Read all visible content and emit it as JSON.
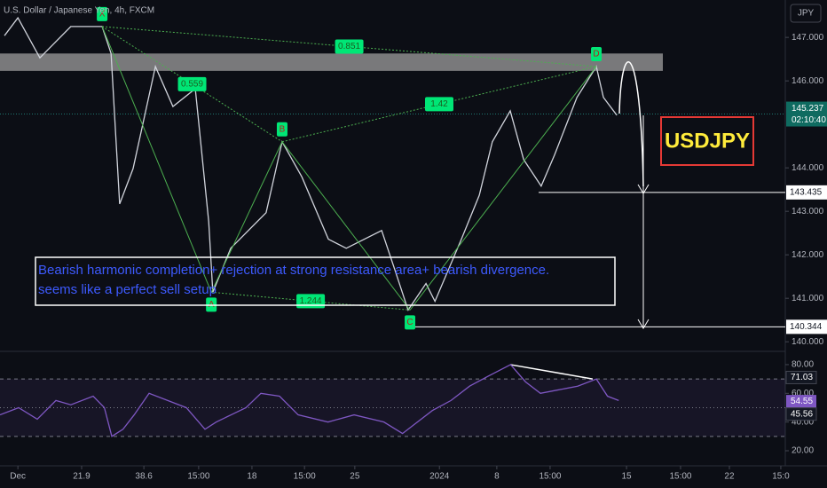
{
  "chart_data": [
    {
      "type": "line",
      "title": "U.S. Dollar / Japanese Yen, 4h, FXCM",
      "currency": "JPY",
      "x": [
        1.2,
        4.8,
        10.7,
        19.0,
        27.4,
        29.8,
        32.1,
        35.7,
        41.7,
        46.4,
        52.4,
        56.0,
        57.1,
        61.9,
        71.4,
        75.7,
        81.0,
        88.1,
        92.9,
        102.4,
        106.0,
        109.5,
        114.3,
        116.7,
        123.8,
        128.6,
        132.1,
        136.9,
        140.5,
        145.2,
        148.8,
        154.8,
        160.0,
        161.9,
        165.5
      ],
      "series": [
        {
          "color": "#d1d4dc",
          "values": [
            147.04,
            147.45,
            146.53,
            147.25,
            147.25,
            146.63,
            143.17,
            143.98,
            146.33,
            145.41,
            145.82,
            142.76,
            141.14,
            142.15,
            142.97,
            144.6,
            143.79,
            142.36,
            142.15,
            142.56,
            141.64,
            140.73,
            141.34,
            140.93,
            142.36,
            143.37,
            144.6,
            145.31,
            144.19,
            143.58,
            144.3,
            145.62,
            146.33,
            145.62,
            145.21
          ]
        }
      ],
      "xlim": [
        0,
        210.7
      ],
      "xticks": [
        {
          "value": 4.8,
          "label": "Dec"
        },
        21.9,
        38.6,
        {
          "value": 53.3,
          "label": "15:00"
        },
        {
          "value": 67.6,
          "label": "18"
        },
        {
          "value": 81.7,
          "label": "15:00"
        },
        {
          "value": 95.2,
          "label": "25"
        },
        {
          "value": 117.9,
          "label": "2024"
        },
        {
          "value": 133.3,
          "label": "8"
        },
        {
          "value": 147.6,
          "label": "15:00"
        },
        {
          "value": 168.1,
          "label": "15"
        },
        {
          "value": 182.6,
          "label": "15:00"
        },
        {
          "value": 195.7,
          "label": "22"
        },
        {
          "value": 209.5,
          "label": "15:0"
        }
      ],
      "ylim": [
        139.8,
        147.86
      ],
      "yticks": [
        {
          "value": 140,
          "label": "140.000"
        },
        {
          "value": 141,
          "label": "141.000"
        },
        {
          "value": 142,
          "label": "142.000"
        },
        {
          "value": 143,
          "label": "143.000"
        },
        {
          "value": 144,
          "label": "144.000"
        },
        {
          "value": 146,
          "label": "146.000"
        },
        {
          "value": 147,
          "label": "147.000"
        }
      ],
      "current_price": 145.237,
      "countdown": "02:10:40",
      "levels": [
        143.435,
        140.344
      ],
      "resistance_zone": [
        146.23,
        146.63
      ],
      "pattern": {
        "color": "#4caf50",
        "points": [
          {
            "label": "X",
            "x": 27.4,
            "y": 147.25
          },
          {
            "label": "A",
            "x": 56.7,
            "y": 141.14
          },
          {
            "label": "B",
            "x": 75.7,
            "y": 144.6
          },
          {
            "label": "C",
            "x": 110.0,
            "y": 140.73
          },
          {
            "label": "D",
            "x": 160.0,
            "y": 146.33
          }
        ],
        "ratios": [
          0.851,
          0.559,
          1.42,
          1.244
        ]
      },
      "annotation": [
        "Bearish harmonic completion+ rejection at strong resistance area+ bearish divergence.",
        "seems like a perfect sell setup"
      ],
      "symbol": "USDJPY"
    },
    {
      "type": "line",
      "x": [
        0,
        5,
        10,
        15,
        19,
        25,
        28,
        30,
        33,
        36,
        40,
        45,
        50,
        55,
        58,
        62,
        66,
        70,
        75,
        80,
        88,
        95,
        103,
        108,
        111,
        116,
        121,
        126,
        131,
        137,
        141,
        145,
        149,
        155,
        160,
        163,
        166
      ],
      "series": [
        {
          "color": "#7e57c2",
          "values": [
            45,
            50,
            42,
            55,
            52,
            58,
            50,
            30,
            35,
            45,
            60,
            55,
            50,
            35,
            40,
            45,
            50,
            60,
            58,
            45,
            40,
            45,
            40,
            32,
            38,
            48,
            55,
            65,
            72,
            80,
            68,
            60,
            62,
            65,
            70,
            58,
            55
          ]
        }
      ],
      "xlim": [
        0,
        210.7
      ],
      "ylim": [
        9.5,
        88.0
      ],
      "yticks": [
        {
          "value": 20,
          "label": "20.00"
        },
        {
          "value": 40,
          "label": "40.00"
        },
        {
          "value": 60,
          "label": "60.00"
        },
        {
          "value": 80,
          "label": "80.00"
        }
      ],
      "levels": [
        70,
        50,
        30
      ],
      "badges": [
        71.03,
        54.55,
        45.56
      ],
      "divergence": {
        "x": [
          136.9,
          159.0
        ],
        "y": [
          80,
          70
        ]
      }
    }
  ]
}
